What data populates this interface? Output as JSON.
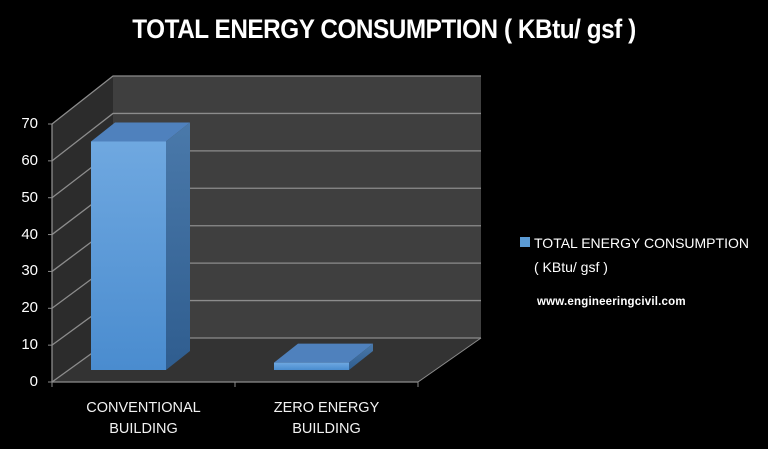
{
  "chart_data": {
    "type": "bar",
    "title": "TOTAL ENERGY CONSUMPTION ( KBtu/ gsf )",
    "categories": [
      "CONVENTIONAL BUILDING",
      "ZERO ENERGY BUILDING"
    ],
    "category_lines": [
      [
        "CONVENTIONAL",
        "BUILDING"
      ],
      [
        "ZERO ENERGY",
        "BUILDING"
      ]
    ],
    "series": [
      {
        "name": "TOTAL ENERGY CONSUMPTION ( KBtu/ gsf )",
        "values": [
          62,
          2
        ],
        "color": "#5b9bd5"
      }
    ],
    "xlabel": "",
    "ylabel": "",
    "ylim": [
      0,
      70
    ],
    "yticks": [
      0,
      10,
      20,
      30,
      40,
      50,
      60,
      70
    ],
    "grid": true,
    "style": "3d-column",
    "legend_position": "right"
  },
  "legend": {
    "line1": "TOTAL ENERGY CONSUMPTION",
    "line2": "( KBtu/ gsf )"
  },
  "watermark": "www.engineeringcivil.com",
  "colors": {
    "background": "#000000",
    "back_wall": "#3f3f3f",
    "side_wall": "#2c2c2c",
    "floor": "#333333",
    "gridline": "#8c8c8c",
    "bar_front": "#5b9bd5",
    "bar_top": "#4f81bd",
    "bar_side": "#3d6ea3"
  }
}
